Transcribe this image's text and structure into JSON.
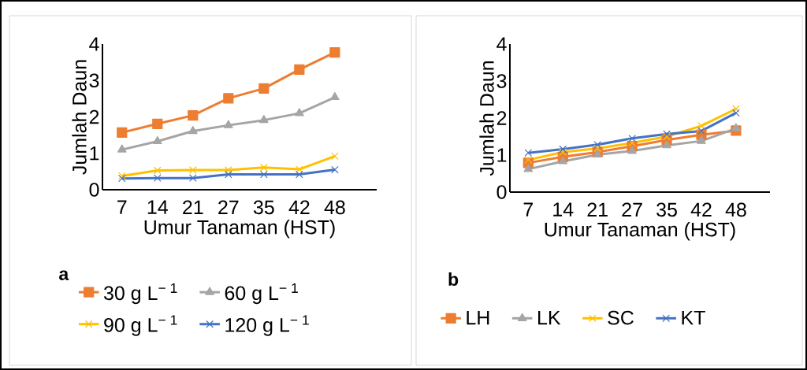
{
  "chart_data": [
    {
      "type": "line",
      "title": "a",
      "xlabel": "Umur Tanaman (HST)",
      "ylabel": "Jumlah Daun",
      "categories": [
        "7",
        "14",
        "21",
        "27",
        "35",
        "42",
        "48"
      ],
      "ylim": [
        0,
        4
      ],
      "yticks": [
        0,
        1,
        2,
        3,
        4
      ],
      "legend": "bottom",
      "grid": false,
      "series": [
        {
          "name": "30 g L$^{− 1}$",
          "color": "#ed7d31",
          "marker": "square",
          "values": [
            1.57,
            1.81,
            2.04,
            2.51,
            2.78,
            3.3,
            3.77
          ]
        },
        {
          "name": "60 g L$^{− 1}$",
          "color": "#a5a5a5",
          "marker": "triangle",
          "values": [
            1.1,
            1.33,
            1.61,
            1.77,
            1.91,
            2.1,
            2.54
          ]
        },
        {
          "name": "90 g L$^{− 1}$",
          "color": "#ffc000",
          "marker": "cross",
          "values": [
            0.38,
            0.53,
            0.54,
            0.54,
            0.61,
            0.56,
            0.92
          ]
        },
        {
          "name": "120 g L$^{− 1}$",
          "color": "#4472c4",
          "marker": "cross",
          "values": [
            0.31,
            0.32,
            0.32,
            0.42,
            0.42,
            0.42,
            0.55
          ]
        }
      ]
    },
    {
      "type": "line",
      "title": "b",
      "xlabel": "Umur Tanaman (HST)",
      "ylabel": "Jumlah Daun",
      "categories": [
        "7",
        "14",
        "21",
        "27",
        "35",
        "42",
        "48"
      ],
      "ylim": [
        0,
        4
      ],
      "yticks": [
        0,
        1,
        2,
        3,
        4
      ],
      "legend": "bottom",
      "grid": false,
      "series": [
        {
          "name": "LH",
          "color": "#ed7d31",
          "marker": "square",
          "values": [
            0.79,
            0.95,
            1.08,
            1.24,
            1.41,
            1.55,
            1.66
          ]
        },
        {
          "name": "LK",
          "color": "#a5a5a5",
          "marker": "triangle",
          "values": [
            0.62,
            0.83,
            1.01,
            1.11,
            1.26,
            1.38,
            1.72
          ]
        },
        {
          "name": "SC",
          "color": "#ffc000",
          "marker": "cross",
          "values": [
            0.87,
            1.08,
            1.18,
            1.33,
            1.5,
            1.79,
            2.25
          ]
        },
        {
          "name": "KT",
          "color": "#4472c4",
          "marker": "cross",
          "values": [
            1.06,
            1.16,
            1.28,
            1.45,
            1.57,
            1.65,
            2.14
          ]
        }
      ]
    }
  ]
}
